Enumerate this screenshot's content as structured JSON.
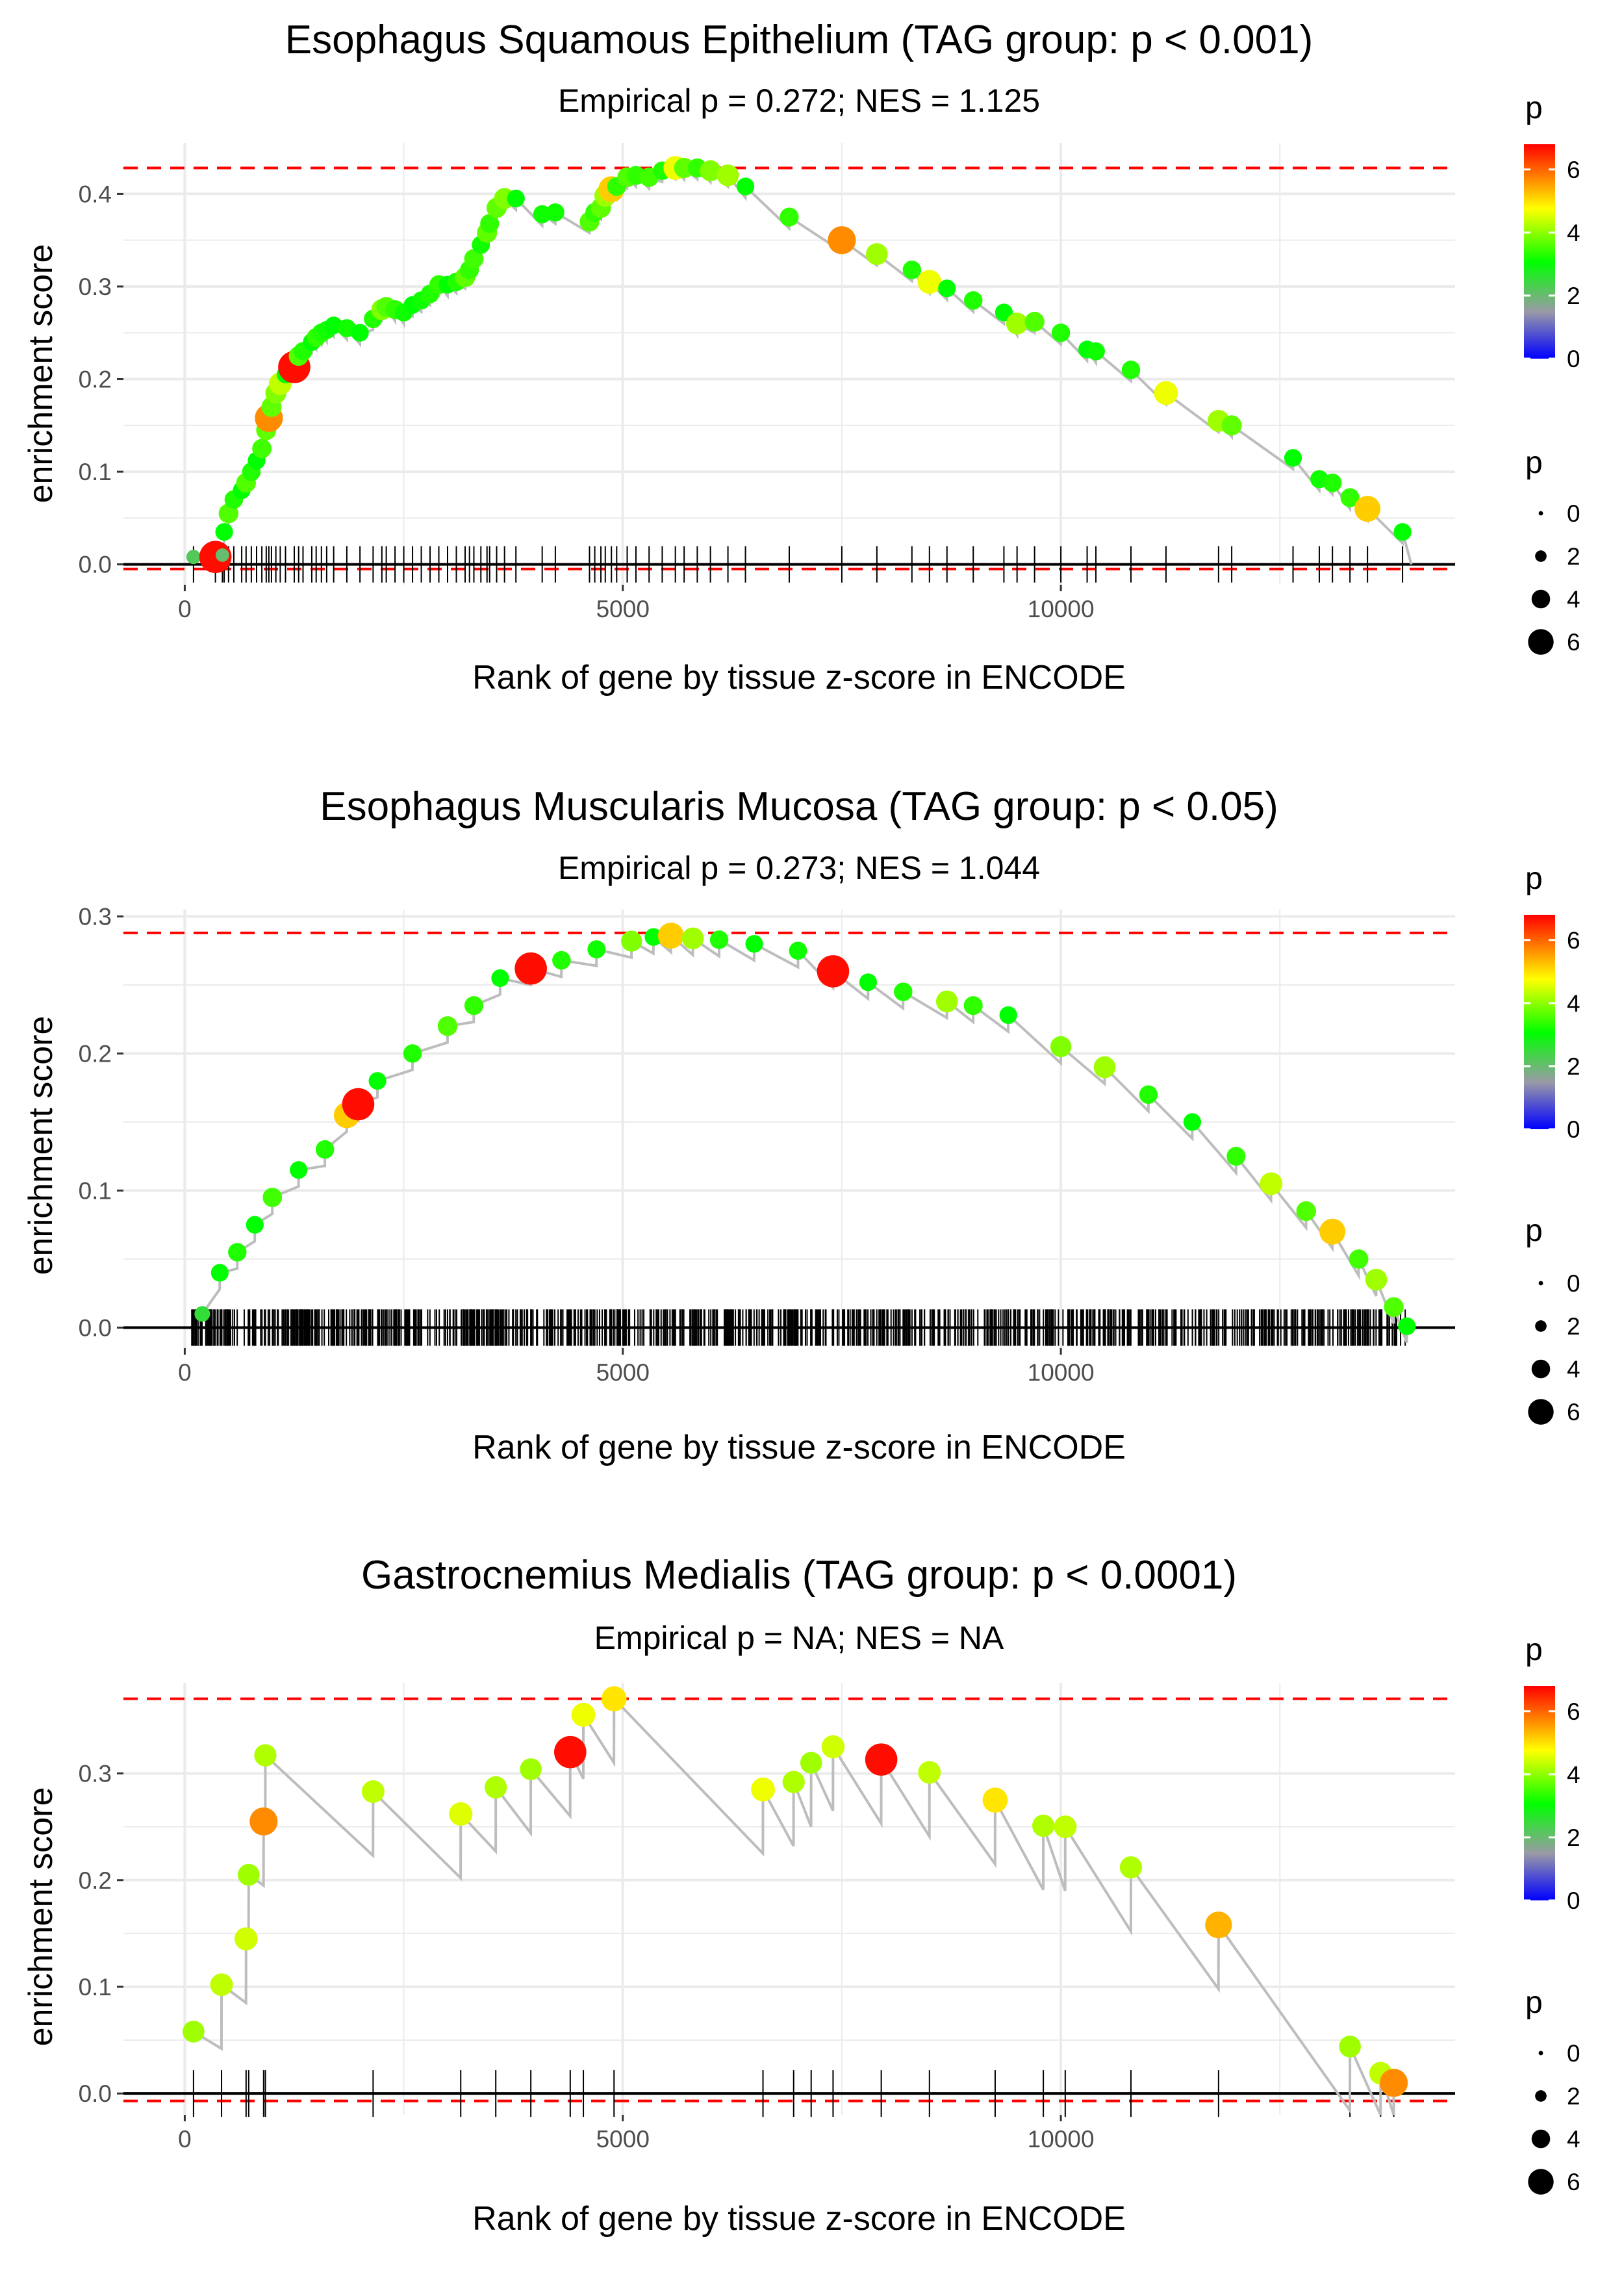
{
  "colors": {
    "grid": "#ebebeb",
    "line": "#bdbdbd",
    "hline": "#ff0000",
    "axis": "#000000",
    "gradient": [
      "#0000ff",
      "#9a9aa6",
      "#00ff00",
      "#ffff00",
      "#ff0000"
    ]
  },
  "chart_data": [
    {
      "type": "line",
      "title": "Esophagus Squamous Epithelium (TAG group: p < 0.001)",
      "subtitle": "Empirical p = 0.272; NES = 1.125",
      "xlabel": "Rank of gene by tissue z-score in ENCODE",
      "ylabel": "enrichment score",
      "xlim": [
        -700,
        14500
      ],
      "ylim": [
        -0.022,
        0.455
      ],
      "x_ticks": [
        0,
        5000,
        10000
      ],
      "x_tick_labels": [
        "0",
        "5000",
        "10000"
      ],
      "y_ticks": [
        0.0,
        0.1,
        0.2,
        0.3,
        0.4
      ],
      "y_tick_labels": [
        "0.0",
        "0.1",
        "0.2",
        "0.3",
        "0.4"
      ],
      "max_es": 0.428,
      "min_es": -0.005,
      "legend": {
        "color_title": "p",
        "color_ticks": [
          "0",
          "2",
          "4",
          "6"
        ],
        "size_title": "p",
        "size_ticks": [
          "0",
          "2",
          "4",
          "6"
        ]
      },
      "points": [
        [
          100,
          0.008,
          2.2
        ],
        [
          350,
          0.008,
          6.5
        ],
        [
          430,
          0.01,
          2.0
        ],
        [
          450,
          0.035,
          3.0
        ],
        [
          500,
          0.055,
          3.5
        ],
        [
          560,
          0.07,
          3.2
        ],
        [
          650,
          0.08,
          3.0
        ],
        [
          700,
          0.088,
          3.5
        ],
        [
          760,
          0.1,
          3.2
        ],
        [
          820,
          0.112,
          3.0
        ],
        [
          880,
          0.125,
          3.4
        ],
        [
          930,
          0.145,
          3.6
        ],
        [
          960,
          0.158,
          5.5
        ],
        [
          990,
          0.17,
          3.6
        ],
        [
          1040,
          0.185,
          3.8
        ],
        [
          1090,
          0.195,
          4.2
        ],
        [
          1150,
          0.205,
          3.0
        ],
        [
          1250,
          0.213,
          6.5
        ],
        [
          1300,
          0.225,
          3.5
        ],
        [
          1350,
          0.23,
          3.2
        ],
        [
          1450,
          0.24,
          3.0
        ],
        [
          1500,
          0.245,
          3.3
        ],
        [
          1560,
          0.25,
          3.2
        ],
        [
          1620,
          0.253,
          3.1
        ],
        [
          1700,
          0.258,
          3.0
        ],
        [
          1850,
          0.255,
          3.1
        ],
        [
          2000,
          0.25,
          3.0
        ],
        [
          2150,
          0.265,
          3.2
        ],
        [
          2250,
          0.275,
          3.8
        ],
        [
          2300,
          0.278,
          3.5
        ],
        [
          2400,
          0.275,
          3.3
        ],
        [
          2500,
          0.272,
          3.1
        ],
        [
          2600,
          0.28,
          3.0
        ],
        [
          2700,
          0.285,
          3.1
        ],
        [
          2800,
          0.292,
          3.2
        ],
        [
          2900,
          0.302,
          3.3
        ],
        [
          3000,
          0.302,
          3.0
        ],
        [
          3100,
          0.305,
          3.2
        ],
        [
          3200,
          0.31,
          3.6
        ],
        [
          3250,
          0.318,
          3.3
        ],
        [
          3300,
          0.33,
          3.4
        ],
        [
          3380,
          0.345,
          3.1
        ],
        [
          3450,
          0.358,
          3.6
        ],
        [
          3480,
          0.368,
          3.3
        ],
        [
          3560,
          0.385,
          3.6
        ],
        [
          3650,
          0.395,
          3.8
        ],
        [
          3780,
          0.395,
          3.0
        ],
        [
          4080,
          0.378,
          3.1
        ],
        [
          4230,
          0.38,
          3.1
        ],
        [
          4620,
          0.37,
          3.5
        ],
        [
          4680,
          0.38,
          3.3
        ],
        [
          4750,
          0.385,
          3.6
        ],
        [
          4800,
          0.398,
          4.0
        ],
        [
          4870,
          0.405,
          5.0
        ],
        [
          4930,
          0.408,
          3.3
        ],
        [
          5050,
          0.418,
          3.5
        ],
        [
          5150,
          0.42,
          3.3
        ],
        [
          5300,
          0.418,
          3.4
        ],
        [
          5450,
          0.425,
          3.2
        ],
        [
          5600,
          0.428,
          4.5
        ],
        [
          5700,
          0.428,
          3.6
        ],
        [
          5850,
          0.428,
          3.3
        ],
        [
          6000,
          0.425,
          3.8
        ],
        [
          6200,
          0.42,
          4.0
        ],
        [
          6400,
          0.408,
          3.0
        ],
        [
          6900,
          0.375,
          3.3
        ],
        [
          7500,
          0.35,
          5.5
        ],
        [
          7900,
          0.335,
          4.0
        ],
        [
          8300,
          0.318,
          3.2
        ],
        [
          8500,
          0.305,
          4.5
        ],
        [
          8700,
          0.298,
          3.0
        ],
        [
          9000,
          0.285,
          3.2
        ],
        [
          9350,
          0.272,
          3.0
        ],
        [
          9500,
          0.26,
          4.0
        ],
        [
          9700,
          0.262,
          3.5
        ],
        [
          10000,
          0.25,
          3.2
        ],
        [
          10300,
          0.232,
          3.0
        ],
        [
          10400,
          0.23,
          3.1
        ],
        [
          10800,
          0.21,
          3.2
        ],
        [
          11200,
          0.185,
          4.5
        ],
        [
          11800,
          0.155,
          4.0
        ],
        [
          11950,
          0.15,
          3.6
        ],
        [
          12650,
          0.115,
          3.0
        ],
        [
          12950,
          0.092,
          3.1
        ],
        [
          13100,
          0.088,
          3.2
        ],
        [
          13300,
          0.072,
          3.3
        ],
        [
          13500,
          0.06,
          5.0
        ],
        [
          13900,
          0.035,
          3.0
        ]
      ],
      "rug": [
        100,
        350,
        430,
        450,
        500,
        560,
        650,
        700,
        760,
        820,
        880,
        930,
        960,
        990,
        1040,
        1090,
        1150,
        1250,
        1300,
        1350,
        1450,
        1500,
        1560,
        1620,
        1700,
        1850,
        2000,
        2150,
        2250,
        2300,
        2400,
        2500,
        2600,
        2700,
        2800,
        2900,
        3000,
        3100,
        3200,
        3250,
        3300,
        3380,
        3450,
        3480,
        3560,
        3650,
        3780,
        4080,
        4230,
        4620,
        4680,
        4750,
        4800,
        4870,
        4930,
        5050,
        5150,
        5300,
        5450,
        5600,
        5700,
        5850,
        6000,
        6200,
        6400,
        6900,
        7500,
        7900,
        8300,
        8500,
        8700,
        9000,
        9350,
        9500,
        9700,
        10000,
        10300,
        10400,
        10800,
        11200,
        11800,
        11950,
        12650,
        12950,
        13100,
        13300,
        13500,
        13900
      ],
      "line_end": [
        14000,
        0.0
      ]
    },
    {
      "type": "line",
      "title": "Esophagus Muscularis Mucosa (TAG group: p < 0.05)",
      "subtitle": "Empirical p = 0.273; NES = 1.044",
      "xlabel": "Rank of gene by tissue z-score in ENCODE",
      "ylabel": "enrichment score",
      "xlim": [
        -700,
        14500
      ],
      "ylim": [
        -0.015,
        0.305
      ],
      "x_ticks": [
        0,
        5000,
        10000
      ],
      "x_tick_labels": [
        "0",
        "5000",
        "10000"
      ],
      "y_ticks": [
        0.0,
        0.1,
        0.2,
        0.3
      ],
      "y_tick_labels": [
        "0.0",
        "0.1",
        "0.2",
        "0.3"
      ],
      "max_es": 0.288,
      "min_es": null,
      "legend": {
        "color_title": "p",
        "color_ticks": [
          "0",
          "2",
          "4",
          "6"
        ],
        "size_title": "p",
        "size_ticks": [
          "0",
          "2",
          "4",
          "6"
        ]
      },
      "points": [
        [
          200,
          0.01,
          2.5
        ],
        [
          400,
          0.04,
          3.0
        ],
        [
          600,
          0.055,
          3.2
        ],
        [
          800,
          0.075,
          3.0
        ],
        [
          1000,
          0.095,
          3.4
        ],
        [
          1300,
          0.115,
          3.0
        ],
        [
          1600,
          0.13,
          3.2
        ],
        [
          1850,
          0.155,
          5.0
        ],
        [
          1980,
          0.163,
          6.5
        ],
        [
          2200,
          0.18,
          3.0
        ],
        [
          2600,
          0.2,
          3.2
        ],
        [
          3000,
          0.22,
          3.5
        ],
        [
          3300,
          0.235,
          3.3
        ],
        [
          3600,
          0.255,
          3.0
        ],
        [
          3950,
          0.262,
          6.5
        ],
        [
          4300,
          0.268,
          3.2
        ],
        [
          4700,
          0.276,
          3.1
        ],
        [
          5100,
          0.282,
          3.8
        ],
        [
          5350,
          0.285,
          3.0
        ],
        [
          5550,
          0.286,
          5.0
        ],
        [
          5800,
          0.284,
          4.0
        ],
        [
          6100,
          0.283,
          3.2
        ],
        [
          6500,
          0.28,
          3.0
        ],
        [
          7000,
          0.275,
          3.1
        ],
        [
          7400,
          0.26,
          6.5
        ],
        [
          7800,
          0.252,
          3.0
        ],
        [
          8200,
          0.245,
          3.2
        ],
        [
          8700,
          0.238,
          4.0
        ],
        [
          9000,
          0.235,
          3.3
        ],
        [
          9400,
          0.228,
          3.0
        ],
        [
          10000,
          0.205,
          3.8
        ],
        [
          10500,
          0.19,
          4.0
        ],
        [
          11000,
          0.17,
          3.2
        ],
        [
          11500,
          0.15,
          3.0
        ],
        [
          12000,
          0.125,
          3.3
        ],
        [
          12400,
          0.105,
          4.2
        ],
        [
          12800,
          0.085,
          3.5
        ],
        [
          13100,
          0.07,
          5.0
        ],
        [
          13400,
          0.05,
          3.4
        ],
        [
          13600,
          0.035,
          4.0
        ],
        [
          13800,
          0.015,
          3.5
        ],
        [
          13950,
          0.001,
          3.0
        ]
      ],
      "rug_range": [
        80,
        13950
      ],
      "rug_count": 900
    },
    {
      "type": "line",
      "title": "Gastrocnemius Medialis (TAG group: p < 0.0001)",
      "subtitle": "Empirical p = NA; NES = NA",
      "xlabel": "Rank of gene by tissue z-score in ENCODE",
      "ylabel": "enrichment score",
      "xlim": [
        -700,
        14500
      ],
      "ylim": [
        -0.02,
        0.385
      ],
      "x_ticks": [
        0,
        5000,
        10000
      ],
      "x_tick_labels": [
        "0",
        "5000",
        "10000"
      ],
      "y_ticks": [
        0.0,
        0.1,
        0.2,
        0.3
      ],
      "y_tick_labels": [
        "0.0",
        "0.1",
        "0.2",
        "0.3"
      ],
      "max_es": 0.37,
      "min_es": -0.007,
      "legend": {
        "color_title": "p",
        "color_ticks": [
          "0",
          "2",
          "4",
          "6"
        ],
        "size_title": "p",
        "size_ticks": [
          "0",
          "2",
          "4",
          "6"
        ]
      },
      "points": [
        [
          100,
          0.058,
          4.0
        ],
        [
          420,
          0.102,
          4.2
        ],
        [
          700,
          0.145,
          4.3
        ],
        [
          730,
          0.205,
          4.0
        ],
        [
          900,
          0.255,
          5.5
        ],
        [
          920,
          0.317,
          4.1
        ],
        [
          2150,
          0.283,
          4.2
        ],
        [
          3150,
          0.262,
          4.4
        ],
        [
          3550,
          0.287,
          4.1
        ],
        [
          3950,
          0.304,
          4.0
        ],
        [
          4400,
          0.32,
          6.5
        ],
        [
          4550,
          0.355,
          4.5
        ],
        [
          4900,
          0.37,
          4.8
        ],
        [
          6600,
          0.285,
          4.5
        ],
        [
          6950,
          0.292,
          4.1
        ],
        [
          7150,
          0.31,
          4.0
        ],
        [
          7400,
          0.325,
          4.3
        ],
        [
          7950,
          0.313,
          6.5
        ],
        [
          8500,
          0.301,
          4.2
        ],
        [
          9250,
          0.275,
          4.8
        ],
        [
          9800,
          0.251,
          4.1
        ],
        [
          10050,
          0.25,
          4.2
        ],
        [
          10800,
          0.212,
          4.1
        ],
        [
          11800,
          0.158,
          5.2
        ],
        [
          13300,
          0.044,
          4.0
        ],
        [
          13650,
          0.019,
          4.2
        ],
        [
          13800,
          0.01,
          5.5
        ]
      ],
      "rug": [
        100,
        420,
        700,
        730,
        900,
        920,
        2150,
        3150,
        3550,
        3950,
        4400,
        4550,
        4900,
        6600,
        6950,
        7150,
        7400,
        7950,
        8500,
        9250,
        9800,
        10050,
        10800,
        11800,
        13300,
        13650,
        13800
      ],
      "line_end": [
        13850,
        0.005
      ]
    }
  ]
}
